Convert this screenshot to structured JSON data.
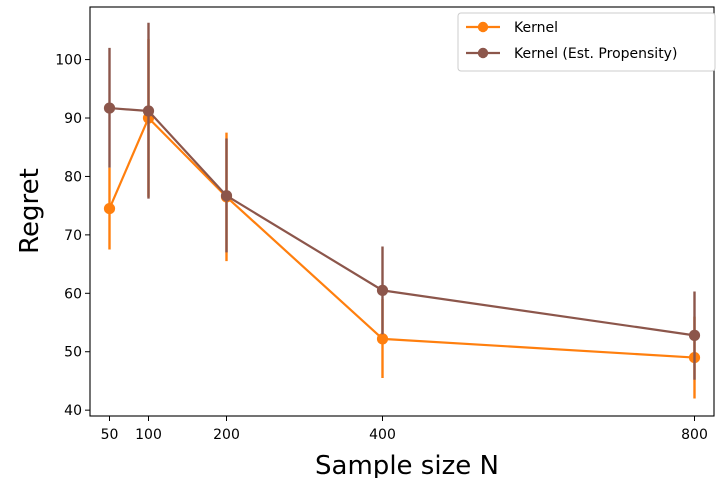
{
  "chart_data": {
    "type": "line",
    "title": "",
    "xlabel": "Sample size N",
    "ylabel": "Regret",
    "x": [
      50,
      100,
      200,
      400,
      800
    ],
    "x_tick_labels": [
      "50",
      "100",
      "200",
      "400",
      "800"
    ],
    "xlim": [
      25,
      825
    ],
    "y_ticks": [
      40,
      50,
      60,
      70,
      80,
      90,
      100
    ],
    "y_tick_labels": [
      "40",
      "50",
      "60",
      "70",
      "80",
      "90",
      "100"
    ],
    "ylim": [
      39,
      109
    ],
    "grid": false,
    "legend_position": "top-right",
    "series": [
      {
        "name": "Kernel",
        "color": "#ff7f0e",
        "values": [
          74.5,
          90.0,
          76.5,
          52.2,
          49.0
        ],
        "error_low": [
          67.5,
          76.5,
          65.5,
          45.5,
          42.0
        ],
        "error_high": [
          81.5,
          103.5,
          87.5,
          59.0,
          56.0
        ]
      },
      {
        "name": "Kernel (Est. Propensity)",
        "color": "#8c564b",
        "values": [
          91.7,
          91.2,
          76.7,
          60.5,
          52.8
        ],
        "error_low": [
          81.5,
          76.2,
          67.0,
          53.0,
          45.2
        ],
        "error_high": [
          102.0,
          106.3,
          86.5,
          68.0,
          60.3
        ]
      }
    ]
  }
}
